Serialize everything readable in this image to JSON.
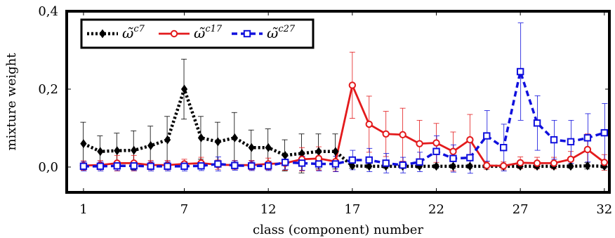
{
  "chart_data": {
    "type": "line",
    "xlabel": "class (component) number",
    "ylabel": "mixture weight",
    "xlim": [
      0,
      32.3
    ],
    "ylim": [
      -0.065,
      0.4
    ],
    "x_ticks": [
      1,
      7,
      12,
      17,
      22,
      27,
      32
    ],
    "y_ticks": [
      0.0,
      0.2,
      0.4
    ],
    "y_tick_labels": [
      "0,0",
      "0,2",
      "0,4"
    ],
    "legend_position": "top-left",
    "grid": false,
    "x": [
      1,
      2,
      3,
      4,
      5,
      6,
      7,
      8,
      9,
      10,
      11,
      12,
      13,
      14,
      15,
      16,
      17,
      18,
      19,
      20,
      21,
      22,
      23,
      24,
      25,
      26,
      27,
      28,
      29,
      30,
      31,
      32
    ],
    "series": [
      {
        "name": "c7",
        "color": "#000000",
        "values": [
          0.06,
          0.04,
          0.042,
          0.043,
          0.055,
          0.07,
          0.2,
          0.075,
          0.065,
          0.075,
          0.05,
          0.05,
          0.03,
          0.035,
          0.04,
          0.04,
          0.003,
          0.002,
          0.002,
          0.002,
          0.002,
          0.002,
          0.002,
          0.002,
          0.002,
          0.002,
          0.002,
          0.002,
          0.002,
          0.002,
          0.003,
          0.002
        ],
        "errors": [
          0.055,
          0.04,
          0.045,
          0.05,
          0.05,
          0.06,
          0.077,
          0.055,
          0.05,
          0.065,
          0.045,
          0.048,
          0.04,
          0.05,
          0.045,
          0.045,
          0.006,
          0.005,
          0.005,
          0.005,
          0.005,
          0.005,
          0.005,
          0.005,
          0.005,
          0.005,
          0.005,
          0.005,
          0.005,
          0.005,
          0.008,
          0.005
        ]
      },
      {
        "name": "c17",
        "color": "#e31a1c",
        "values": [
          0.004,
          0.005,
          0.01,
          0.01,
          0.005,
          0.005,
          0.008,
          0.01,
          0.006,
          0.005,
          0.005,
          0.008,
          0.01,
          0.02,
          0.022,
          0.014,
          0.21,
          0.11,
          0.085,
          0.083,
          0.06,
          0.062,
          0.04,
          0.07,
          0.004,
          0.003,
          0.011,
          0.01,
          0.01,
          0.02,
          0.045,
          0.012
        ],
        "errors": [
          0.012,
          0.012,
          0.02,
          0.02,
          0.012,
          0.012,
          0.012,
          0.015,
          0.012,
          0.012,
          0.012,
          0.015,
          0.018,
          0.03,
          0.03,
          0.025,
          0.085,
          0.072,
          0.058,
          0.068,
          0.06,
          0.05,
          0.05,
          0.065,
          0.01,
          0.01,
          0.015,
          0.015,
          0.015,
          0.02,
          0.04,
          0.02
        ]
      },
      {
        "name": "c27",
        "color": "#1010dd",
        "values": [
          0.002,
          0.002,
          0.003,
          0.003,
          0.002,
          0.002,
          0.002,
          0.003,
          0.008,
          0.004,
          0.003,
          0.003,
          0.012,
          0.01,
          0.008,
          0.008,
          0.018,
          0.018,
          0.01,
          0.005,
          0.013,
          0.04,
          0.022,
          0.024,
          0.08,
          0.05,
          0.245,
          0.113,
          0.07,
          0.065,
          0.075,
          0.088
        ],
        "errors": [
          0.012,
          0.012,
          0.012,
          0.012,
          0.012,
          0.012,
          0.012,
          0.012,
          0.018,
          0.012,
          0.012,
          0.012,
          0.018,
          0.018,
          0.018,
          0.02,
          0.025,
          0.03,
          0.025,
          0.02,
          0.025,
          0.04,
          0.035,
          0.04,
          0.065,
          0.06,
          0.125,
          0.07,
          0.05,
          0.055,
          0.062,
          0.075
        ]
      }
    ]
  }
}
